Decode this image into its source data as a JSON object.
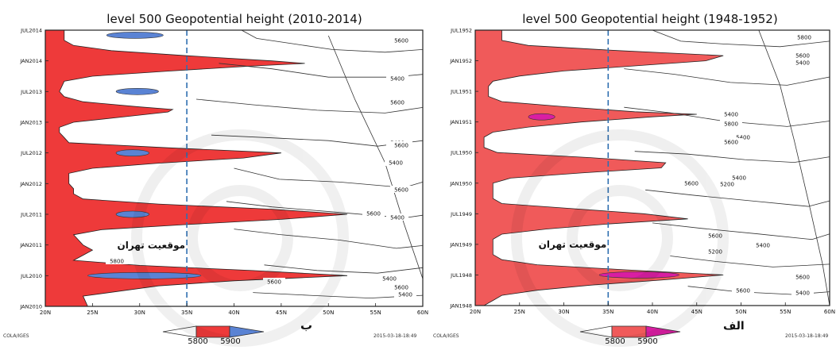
{
  "chart_data": [
    {
      "type": "area",
      "title": "level 500 Geopotential height (2010-2014)",
      "panel_letter": "ب",
      "x_ticks": [
        "20N",
        "25N",
        "30N",
        "35N",
        "40N",
        "45N",
        "50N",
        "55N",
        "60N"
      ],
      "y_ticks": [
        "JAN2010",
        "JUL2010",
        "JAN2011",
        "JUL2011",
        "JAN2012",
        "JUL2012",
        "JAN2013",
        "JUL2013",
        "JAN2014",
        "JUL2014"
      ],
      "xlim": [
        20,
        60
      ],
      "ylim": [
        0,
        54
      ],
      "tehran_lat": 35,
      "tehran_label": "موقعیت تهران",
      "series": [
        {
          "name": "5800",
          "color": "#ee3a3a",
          "contour_5800_lat": [
            [
              0,
              24.5
            ],
            [
              2,
              24
            ],
            [
              4,
              32
            ],
            [
              5,
              40
            ],
            [
              6,
              52
            ],
            [
              7,
              42
            ],
            [
              8,
              30
            ],
            [
              9,
              23
            ],
            [
              10,
              24
            ],
            [
              11,
              25
            ],
            [
              12,
              24
            ],
            [
              14,
              23
            ],
            [
              15,
              26
            ],
            [
              16,
              35
            ],
            [
              17,
              45
            ],
            [
              18,
              52
            ],
            [
              19,
              44
            ],
            [
              20,
              32
            ],
            [
              21,
              24
            ],
            [
              22,
              23
            ],
            [
              23,
              23
            ],
            [
              24,
              22.5
            ],
            [
              26,
              22.5
            ],
            [
              27,
              25
            ],
            [
              28,
              32
            ],
            [
              29,
              41
            ],
            [
              30,
              45
            ],
            [
              31,
              33
            ],
            [
              32,
              22.5
            ],
            [
              33,
              22
            ],
            [
              34,
              21.5
            ],
            [
              35,
              21.5
            ],
            [
              36,
              23
            ],
            [
              37,
              28
            ],
            [
              38,
              33
            ],
            [
              38.5,
              33.5
            ],
            [
              39,
              30
            ],
            [
              40,
              24
            ],
            [
              41,
              22
            ],
            [
              42,
              21.5
            ],
            [
              44,
              22
            ],
            [
              45,
              25
            ],
            [
              46,
              33
            ],
            [
              47,
              42
            ],
            [
              47.5,
              47.5
            ],
            [
              48,
              44
            ],
            [
              49,
              35
            ],
            [
              50,
              27
            ],
            [
              51,
              23
            ],
            [
              52,
              22
            ],
            [
              54,
              22
            ]
          ]
        },
        {
          "name": "5900",
          "color": "#5a83d4",
          "blobs": [
            {
              "t": 6,
              "lat": [
                24.5,
                36.5
              ]
            },
            {
              "t": 18,
              "lat": [
                27.5,
                31
              ]
            },
            {
              "t": 30,
              "lat": [
                27.5,
                31
              ]
            },
            {
              "t": 42,
              "lat": [
                27.5,
                32
              ]
            },
            {
              "t": 53,
              "lat": [
                26.5,
                32.5
              ]
            }
          ]
        }
      ],
      "contour_labels": [
        "5400",
        "5400",
        "5400",
        "5400",
        "5400",
        "5400",
        "5400",
        "5600",
        "5600",
        "5600",
        "5600",
        "5600",
        "5600",
        "5600",
        "5800"
      ],
      "legend": {
        "values": [
          "5800",
          "5900"
        ],
        "colors": [
          "#ee3a3a",
          "#5a83d4"
        ]
      },
      "footer_left": "COLA/IGES",
      "footer_right": "2015-03-18-18:49"
    },
    {
      "type": "area",
      "title": "level 500 Geopotential height (1948-1952)",
      "panel_letter": "الف",
      "x_ticks": [
        "20N",
        "25N",
        "30N",
        "35N",
        "40N",
        "45N",
        "50N",
        "55N",
        "60N"
      ],
      "y_ticks": [
        "JAN1948",
        "JUL1948",
        "JAN1949",
        "JUL1949",
        "JAN1950",
        "JUL1950",
        "JAN1951",
        "JUL1951",
        "JAN1952",
        "JUL1952"
      ],
      "xlim": [
        20,
        60
      ],
      "ylim": [
        0,
        54
      ],
      "tehran_lat": 35,
      "tehran_label": "موقعیت تهران",
      "series": [
        {
          "name": "5800",
          "color": "#f05a5a",
          "contour_5800_lat": [
            [
              0,
              21
            ],
            [
              1,
              22
            ],
            [
              2,
              23
            ],
            [
              3,
              27
            ],
            [
              4,
              33
            ],
            [
              5,
              41
            ],
            [
              6,
              48
            ],
            [
              7,
              37
            ],
            [
              8,
              27
            ],
            [
              9,
              23
            ],
            [
              10,
              22
            ],
            [
              12,
              22
            ],
            [
              13,
              22
            ],
            [
              14,
              23
            ],
            [
              15,
              28
            ],
            [
              16,
              35
            ],
            [
              17,
              44
            ],
            [
              18,
              39
            ],
            [
              19,
              31
            ],
            [
              20,
              23
            ],
            [
              21,
              22
            ],
            [
              23,
              22
            ],
            [
              24,
              22
            ],
            [
              25,
              24
            ],
            [
              26,
              32
            ],
            [
              27,
              41
            ],
            [
              28,
              41.5
            ],
            [
              29,
              33
            ],
            [
              30,
              22.5
            ],
            [
              31,
              21
            ],
            [
              33,
              21
            ],
            [
              34,
              22
            ],
            [
              35,
              26
            ],
            [
              36,
              32
            ],
            [
              37,
              40
            ],
            [
              37.5,
              45
            ],
            [
              38,
              38
            ],
            [
              39,
              30
            ],
            [
              40,
              23
            ],
            [
              41,
              21.5
            ],
            [
              43,
              21.5
            ],
            [
              44,
              22
            ],
            [
              45,
              25
            ],
            [
              46,
              30
            ],
            [
              47,
              38
            ],
            [
              48,
              46
            ],
            [
              49,
              48
            ],
            [
              50,
              36
            ],
            [
              51,
              26
            ],
            [
              52,
              23
            ],
            [
              54,
              23
            ]
          ]
        },
        {
          "name": "5900",
          "color": "#d91ea2",
          "blobs": [
            {
              "t": 6,
              "lat": [
                34,
                43
              ]
            },
            {
              "t": 37,
              "lat": [
                26,
                29
              ]
            }
          ]
        }
      ],
      "contour_labels": [
        "5200",
        "5200",
        "5400",
        "5400",
        "5400",
        "5400",
        "5400",
        "5400",
        "5600",
        "5600",
        "5600",
        "5600",
        "5600",
        "5600",
        "5800",
        "5800"
      ],
      "legend": {
        "values": [
          "5800",
          "5900"
        ],
        "colors": [
          "#f05a5a",
          "#d91ea2"
        ]
      },
      "footer_left": "COLA/IGES",
      "footer_right": "2015-03-18-18:49"
    }
  ]
}
